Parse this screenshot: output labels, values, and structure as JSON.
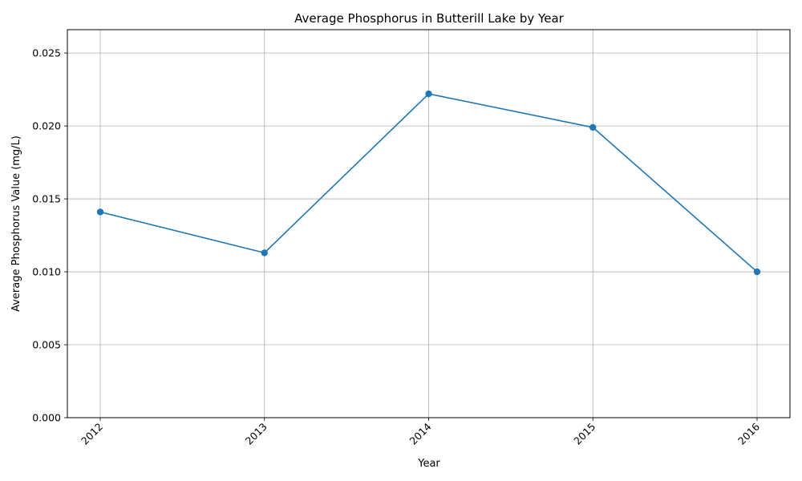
{
  "chart_data": {
    "type": "line",
    "title": "Average Phosphorus in Butterill Lake by Year",
    "xlabel": "Year",
    "ylabel": "Average Phosphorus Value (mg/L)",
    "categories": [
      "2012",
      "2013",
      "2014",
      "2015",
      "2016"
    ],
    "series": [
      {
        "values": [
          0.0141,
          0.0113,
          0.0222,
          0.0199,
          0.01
        ]
      }
    ],
    "ylim": [
      0,
      0.0266
    ],
    "y_ticks": [
      "0.000",
      "0.005",
      "0.010",
      "0.015",
      "0.020",
      "0.025"
    ],
    "grid": true,
    "marker": "circle",
    "color": "#1f77b4",
    "x_tick_rotation_deg": 45
  }
}
